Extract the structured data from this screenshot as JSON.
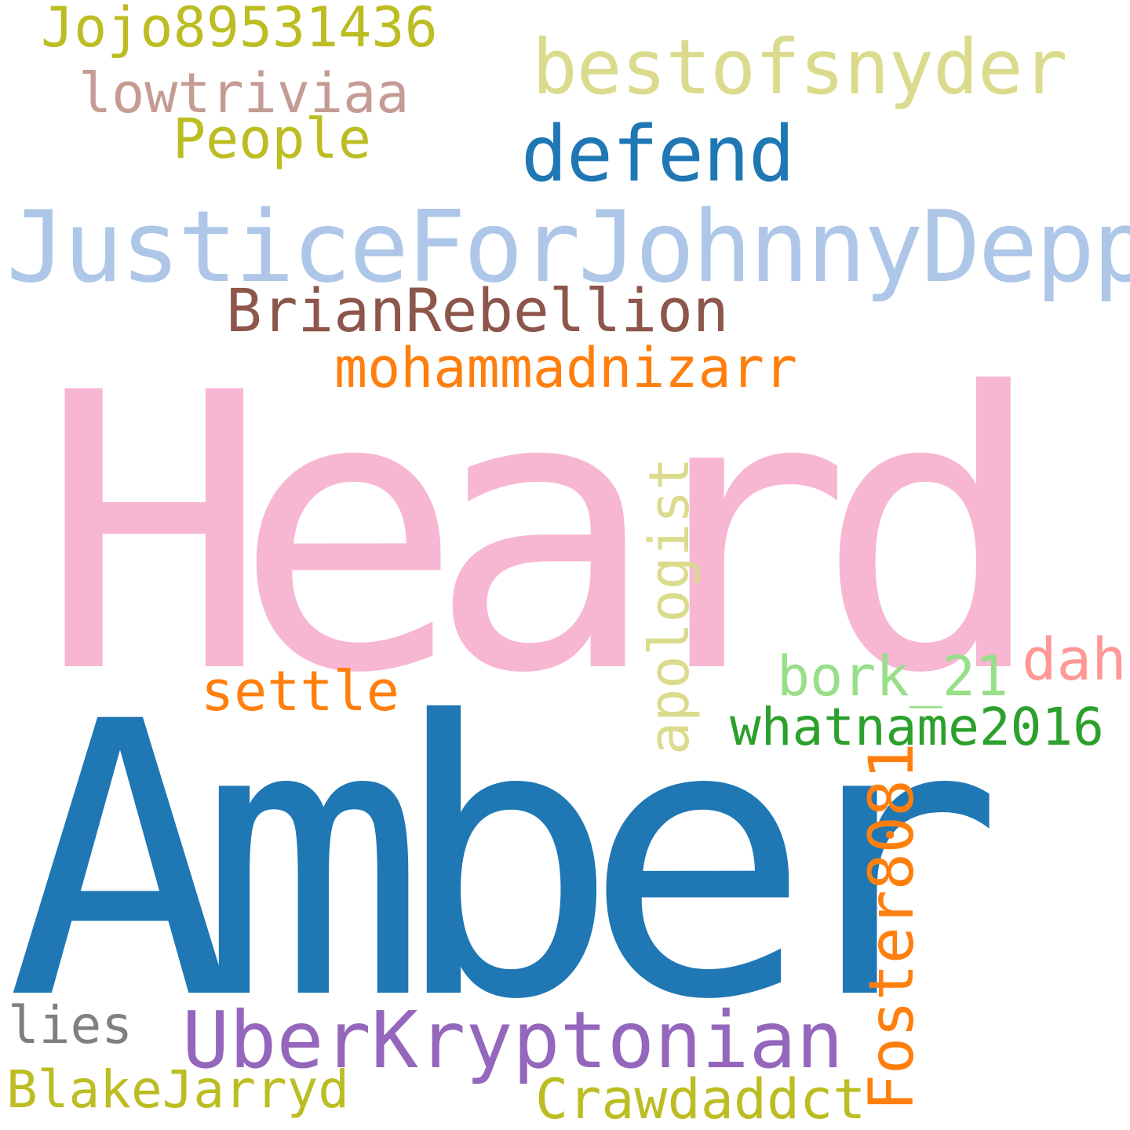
{
  "wordcloud": {
    "background": "#ffffff",
    "words": {
      "heard": {
        "text": "Heard",
        "color": "#f7b6d2"
      },
      "amber": {
        "text": "Amber",
        "color": "#1f77b4"
      },
      "justice": {
        "text": "JusticeForJohnnyDepp",
        "color": "#aec7e8"
      },
      "bestofsnyder": {
        "text": "bestofsnyder",
        "color": "#dbdb8d"
      },
      "defend": {
        "text": "defend",
        "color": "#1f77b4"
      },
      "jojo": {
        "text": "Jojo89531436",
        "color": "#bcbd22"
      },
      "lowtrivia": {
        "text": "lowtriviaa",
        "color": "#c49c94"
      },
      "people": {
        "text": "People",
        "color": "#bcbd22"
      },
      "brian": {
        "text": "BrianRebellion",
        "color": "#8c564b"
      },
      "mohammad": {
        "text": "mohammadnizarr",
        "color": "#ff7f0e"
      },
      "apologist": {
        "text": "apologist",
        "color": "#dbdb8d"
      },
      "settle": {
        "text": "settle",
        "color": "#ff7f0e"
      },
      "bork": {
        "text": "bork_21",
        "color": "#98df8a"
      },
      "dah": {
        "text": "dah",
        "color": "#ff9896"
      },
      "whatname": {
        "text": "whatname2016",
        "color": "#2ca02c"
      },
      "foster": {
        "text": "Foster8081",
        "color": "#ff7f0e"
      },
      "uber": {
        "text": "UberKryptonian",
        "color": "#9467bd"
      },
      "lies": {
        "text": "lies",
        "color": "#7f7f7f"
      },
      "blake": {
        "text": "BlakeJarryd",
        "color": "#bcbd22"
      },
      "crawdad": {
        "text": "Crawdaddct",
        "color": "#bcbd22"
      }
    }
  }
}
